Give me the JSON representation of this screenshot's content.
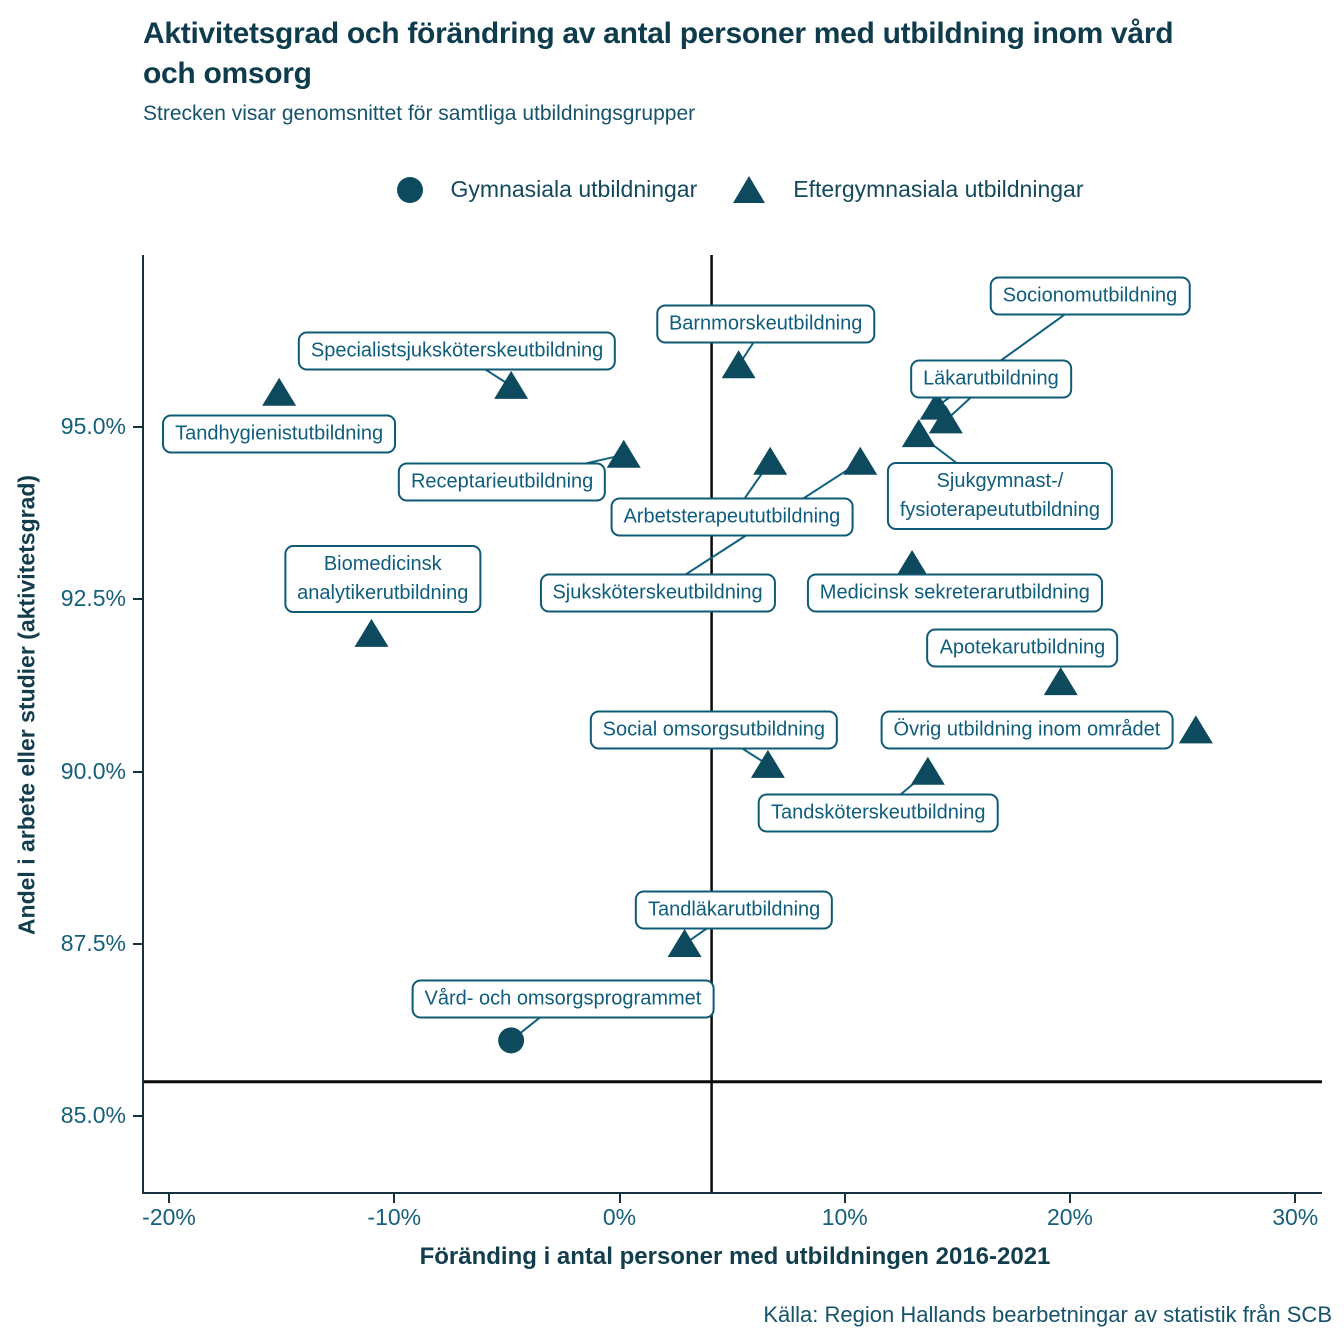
{
  "chart_data": {
    "type": "scatter",
    "title": "Aktivitetsgrad och förändring av antal personer med utbildning inom vård och omsorg",
    "subtitle": "Strecken visar genomsnittet för samtliga utbildningsgrupper",
    "xlabel": "Föränding i antal personer med utbildningen 2016-2021",
    "ylabel": "Andel i arbete eller studier (aktivitetsgrad)",
    "source": "Källa: Region Hallands bearbetningar av statistik från SCB",
    "legend": [
      {
        "marker": "circle",
        "label": "Gymnasiala utbildningar"
      },
      {
        "marker": "triangle",
        "label": "Eftergymnasiala utbildningar"
      }
    ],
    "colors": {
      "marker": "#0d4a5e",
      "label_box": "#0f5a74",
      "reference_line": "#0a0a0a",
      "leader_line": "#10607e"
    },
    "xlim": [
      -21.2,
      31.1
    ],
    "ylim": [
      83.9,
      97.5
    ],
    "grid": false,
    "x_ticks": [
      {
        "value": -20,
        "label": "-20%"
      },
      {
        "value": -10,
        "label": "-10%"
      },
      {
        "value": 0,
        "label": "0%"
      },
      {
        "value": 10,
        "label": "10%"
      },
      {
        "value": 20,
        "label": "20%"
      },
      {
        "value": 30,
        "label": "30%"
      }
    ],
    "y_ticks": [
      {
        "value": 95.0,
        "label": "95.0%"
      },
      {
        "value": 92.5,
        "label": "92.5%"
      },
      {
        "value": 90.0,
        "label": "90.0%"
      },
      {
        "value": 87.5,
        "label": "87.5%"
      },
      {
        "value": 85.0,
        "label": "85.0%"
      }
    ],
    "reference_lines": {
      "vertical_x": 4.0,
      "horizontal_y": 85.5
    },
    "points": [
      {
        "label": "Tandhygienistutbildning",
        "marker": "triangle",
        "x": -15.2,
        "y": 95.5,
        "label_x": -15.2,
        "label_y": 94.9,
        "leader": false
      },
      {
        "label": "Specialistsjuksköterskeutbildning",
        "marker": "triangle",
        "x": -4.9,
        "y": 95.6,
        "label_x": -7.3,
        "label_y": 96.1,
        "leader": true
      },
      {
        "label": "Barnmorskeutbildning",
        "marker": "triangle",
        "x": 5.2,
        "y": 95.9,
        "label_x": 6.4,
        "label_y": 96.5,
        "leader": true
      },
      {
        "label": "Receptarieutbildning",
        "marker": "triangle",
        "x": 0.1,
        "y": 94.6,
        "label_x": -5.3,
        "label_y": 94.2,
        "leader": true
      },
      {
        "label": "Arbetsterapeututbildning",
        "marker": "triangle",
        "x": 6.6,
        "y": 94.5,
        "label_x": 4.9,
        "label_y": 93.7,
        "leader": true
      },
      {
        "label": "Sjuksköterskeutbildning",
        "marker": "triangle",
        "x": 10.6,
        "y": 94.5,
        "label_x": 1.6,
        "label_y": 92.6,
        "leader": true
      },
      {
        "label": "Socionomutbildning",
        "marker": "triangle",
        "x": 14.0,
        "y": 95.3,
        "label_x": 20.8,
        "label_y": 96.9,
        "leader": true
      },
      {
        "label": "Läkarutbildning",
        "marker": "triangle",
        "x": 14.4,
        "y": 95.1,
        "label_x": 16.4,
        "label_y": 95.7,
        "leader": true
      },
      {
        "label": "Sjukgymnast-/\nfysioterapeututbildning",
        "marker": "triangle",
        "x": 13.2,
        "y": 94.9,
        "label_x": 16.8,
        "label_y": 94.0,
        "leader": true
      },
      {
        "label": "Medicinsk sekreterarutbildning",
        "marker": "triangle",
        "x": 12.9,
        "y": 93.0,
        "label_x": 14.8,
        "label_y": 92.6,
        "leader": false
      },
      {
        "label": "Biomedicinsk\nanalytikerutbildning",
        "marker": "triangle",
        "x": -11.1,
        "y": 92.0,
        "label_x": -10.6,
        "label_y": 92.8,
        "leader": false
      },
      {
        "label": "Apotekarutbildning",
        "marker": "triangle",
        "x": 19.5,
        "y": 91.3,
        "label_x": 17.8,
        "label_y": 91.8,
        "leader": false
      },
      {
        "label": "Övrig utbildning inom området",
        "marker": "triangle",
        "x": 25.5,
        "y": 90.6,
        "label_x": 18.0,
        "label_y": 90.6,
        "leader": false
      },
      {
        "label": "Social omsorgsutbildning",
        "marker": "triangle",
        "x": 6.5,
        "y": 90.1,
        "label_x": 4.1,
        "label_y": 90.6,
        "leader": true
      },
      {
        "label": "Tandsköterskeutbildning",
        "marker": "triangle",
        "x": 13.6,
        "y": 90.0,
        "label_x": 11.4,
        "label_y": 89.4,
        "leader": true
      },
      {
        "label": "Tandläkarutbildning",
        "marker": "triangle",
        "x": 2.8,
        "y": 87.5,
        "label_x": 5.0,
        "label_y": 88.0,
        "leader": true
      },
      {
        "label": "Vård- och omsorgsprogrammet",
        "marker": "circle",
        "x": -4.9,
        "y": 86.1,
        "label_x": -2.6,
        "label_y": 86.7,
        "leader": true
      }
    ]
  }
}
